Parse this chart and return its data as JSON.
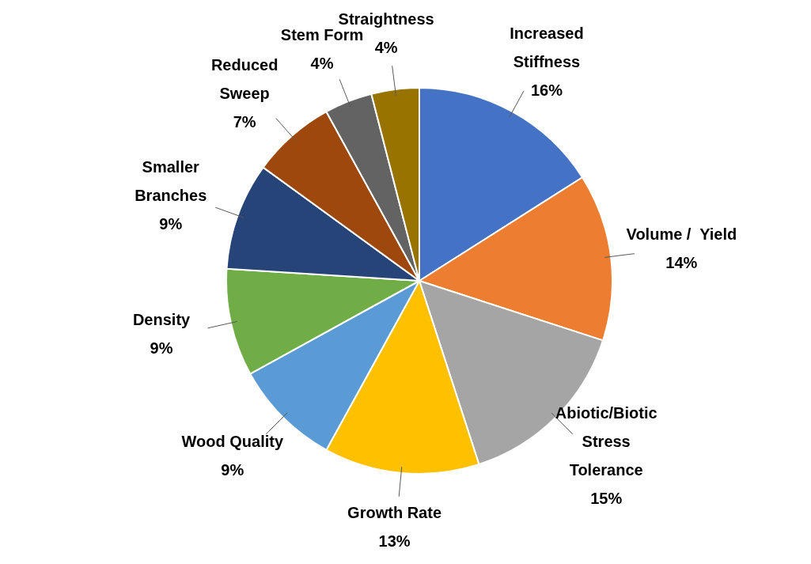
{
  "chart_data": {
    "type": "pie",
    "categories": [
      "Increased Stiffness",
      "Volume /  Yield",
      "Abiotic/Biotic Stress Tolerance",
      "Growth Rate",
      "Wood Quality",
      "Density",
      "Smaller Branches",
      "Reduced Sweep",
      "Stem Form",
      "Straightness"
    ],
    "values": [
      16,
      14,
      15,
      13,
      9,
      9,
      9,
      7,
      4,
      4
    ],
    "colors": [
      "#4472c4",
      "#ed7d31",
      "#a5a5a5",
      "#ffc000",
      "#5b9bd5",
      "#70ad47",
      "#264478",
      "#9e480e",
      "#636363",
      "#997300"
    ],
    "value_labels": [
      "16%",
      "14%",
      "15%",
      "13%",
      "9%",
      "9%",
      "9%",
      "7%",
      "4%",
      "4%"
    ],
    "legend": false
  }
}
